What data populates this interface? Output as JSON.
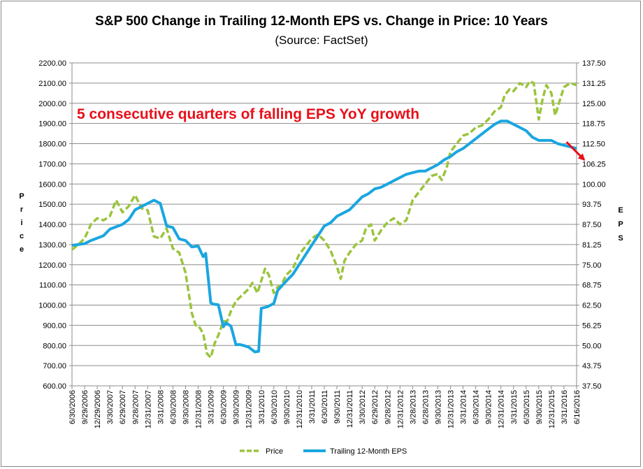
{
  "chart_data": {
    "type": "line",
    "title": "S&P 500 Change in Trailing 12-Month EPS vs. Change in Price: 10 Years",
    "subtitle": "(Source: FactSet)",
    "ylabel_left": "Price",
    "ylabel_right": "EPS",
    "ylim_left": [
      600,
      2200
    ],
    "ylim_right": [
      37.5,
      137.5
    ],
    "left_ticks": [
      "600.00",
      "700.00",
      "800.00",
      "900.00",
      "1000.00",
      "1100.00",
      "1200.00",
      "1300.00",
      "1400.00",
      "1500.00",
      "1600.00",
      "1700.00",
      "1800.00",
      "1900.00",
      "2000.00",
      "2100.00",
      "2200.00"
    ],
    "right_ticks": [
      "37.50",
      "43.75",
      "50.00",
      "56.25",
      "62.50",
      "68.75",
      "75.00",
      "81.25",
      "87.50",
      "93.75",
      "100.00",
      "106.25",
      "112.50",
      "118.75",
      "125.00",
      "131.25",
      "137.50"
    ],
    "x_ticks": [
      "6/30/2006",
      "9/29/2006",
      "12/29/2006",
      "3/30/2007",
      "6/29/2007",
      "9/28/2007",
      "12/31/2007",
      "3/31/2008",
      "6/30/2008",
      "9/30/2008",
      "12/31/2008",
      "3/31/2009",
      "6/30/2009",
      "9/30/2009",
      "12/31/2009",
      "3/31/2010",
      "6/30/2010",
      "9/30/2010",
      "12/31/2010",
      "3/31/2011",
      "6/30/2011",
      "9/30/2011",
      "12/31/2011",
      "3/30/2012",
      "6/29/2012",
      "9/28/2012",
      "12/31/2012",
      "3/28/2013",
      "6/28/2013",
      "9/30/2013",
      "12/31/2013",
      "3/31/2014",
      "6/30/2014",
      "9/30/2014",
      "12/31/2014",
      "3/31/2015",
      "6/30/2015",
      "9/30/2015",
      "12/31/2015",
      "3/31/2016",
      "6/16/2016"
    ],
    "x_range": [
      0,
      40
    ],
    "legend_position": "bottom",
    "series": [
      {
        "name": "Price",
        "axis": "left",
        "color": "#9ac43c",
        "style": "dashed",
        "x": [
          0,
          0.5,
          1,
          1.5,
          2,
          2.5,
          3,
          3.5,
          4,
          4.5,
          5,
          5.5,
          6,
          6.5,
          7,
          7.5,
          8,
          8.5,
          9,
          9.5,
          9.8,
          10,
          10.4,
          10.7,
          11,
          11.3,
          11.6,
          12,
          12.3,
          12.6,
          13,
          13.5,
          14,
          14.3,
          14.7,
          15,
          15.3,
          15.6,
          16,
          16.3,
          16.6,
          17,
          17.5,
          18,
          18.5,
          19,
          19.5,
          20,
          20.5,
          21,
          21.3,
          21.6,
          22,
          22.5,
          23,
          23.3,
          23.7,
          24,
          24.5,
          25,
          25.5,
          26,
          26.5,
          27,
          27.5,
          28,
          28.5,
          29,
          29.3,
          29.7,
          30,
          30.5,
          31,
          31.5,
          32,
          32.5,
          33,
          33.5,
          34,
          34.3,
          34.7,
          35,
          35.5,
          36,
          36.3,
          36.6,
          37,
          37.3,
          37.6,
          38,
          38.3,
          38.6,
          39,
          39.5,
          40
        ],
        "values": [
          1275,
          1300,
          1330,
          1400,
          1430,
          1420,
          1440,
          1520,
          1460,
          1490,
          1545,
          1480,
          1470,
          1340,
          1330,
          1380,
          1280,
          1260,
          1160,
          960,
          900,
          900,
          860,
          760,
          740,
          810,
          850,
          920,
          920,
          970,
          1020,
          1050,
          1080,
          1110,
          1060,
          1120,
          1180,
          1150,
          1060,
          1090,
          1100,
          1150,
          1180,
          1250,
          1290,
          1330,
          1350,
          1320,
          1270,
          1190,
          1130,
          1220,
          1260,
          1300,
          1320,
          1380,
          1400,
          1320,
          1370,
          1410,
          1430,
          1400,
          1420,
          1520,
          1560,
          1600,
          1640,
          1650,
          1620,
          1680,
          1760,
          1800,
          1840,
          1850,
          1880,
          1890,
          1920,
          1960,
          1980,
          2040,
          2070,
          2060,
          2100,
          2080,
          2110,
          2100,
          1920,
          2020,
          2090,
          2050,
          1940,
          2000,
          2080,
          2100,
          2090
        ]
      },
      {
        "name": "Trailing 12-Month EPS",
        "axis": "right",
        "color": "#1aa6e0",
        "style": "solid",
        "x": [
          0,
          1,
          1.5,
          2.5,
          3,
          4,
          4.5,
          5,
          6,
          6.5,
          7,
          7.5,
          8,
          8.5,
          9,
          9.5,
          10,
          10.4,
          10.6,
          11,
          11.2,
          11.6,
          12,
          12.2,
          12.6,
          13,
          13.3,
          13.6,
          14,
          14.5,
          14.8,
          15,
          15.5,
          16,
          16.3,
          17,
          17.5,
          18,
          18.5,
          19,
          19.5,
          20,
          20.5,
          21,
          21.5,
          22,
          22.5,
          23,
          23.5,
          24,
          24.5,
          25,
          25.5,
          26,
          26.5,
          27,
          27.5,
          28,
          28.5,
          29,
          29.5,
          30,
          30.5,
          31,
          31.5,
          32,
          32.5,
          33,
          33.5,
          34,
          34.5,
          35,
          35.5,
          36,
          36.5,
          37,
          37.5,
          38,
          38.5,
          39,
          39.5,
          40
        ],
        "values": [
          81,
          81.5,
          82.5,
          84,
          86,
          87.5,
          89,
          92,
          94,
          95,
          94,
          87,
          86.5,
          83,
          82.5,
          80.5,
          80.8,
          77.5,
          78.5,
          63.2,
          62.8,
          62.6,
          55.8,
          57,
          56,
          50.2,
          50.3,
          50.0,
          49.5,
          48.0,
          48.2,
          61.5,
          62.0,
          63.0,
          67.0,
          70.0,
          72.0,
          75.0,
          78.0,
          81.0,
          84.0,
          87.0,
          88.0,
          90.0,
          91.0,
          92.0,
          94.0,
          96.0,
          97.0,
          98.5,
          99.0,
          100.0,
          101.0,
          102.0,
          103.0,
          103.5,
          104.0,
          104.0,
          105.0,
          106.0,
          107.5,
          108.5,
          110.0,
          111.0,
          112.5,
          114.0,
          115.5,
          117.0,
          118.5,
          119.5,
          119.5,
          118.5,
          117.5,
          116.5,
          114.5,
          113.5,
          113.5,
          113.5,
          112.5,
          112.0,
          111.5,
          111.0
        ]
      }
    ],
    "annotation": {
      "text": "5 consecutive quarters of falling EPS YoY growth",
      "color": "#e8101a",
      "arrow_from": [
        39.2,
        113.0
      ],
      "arrow_to": [
        40.6,
        107.5
      ]
    }
  }
}
